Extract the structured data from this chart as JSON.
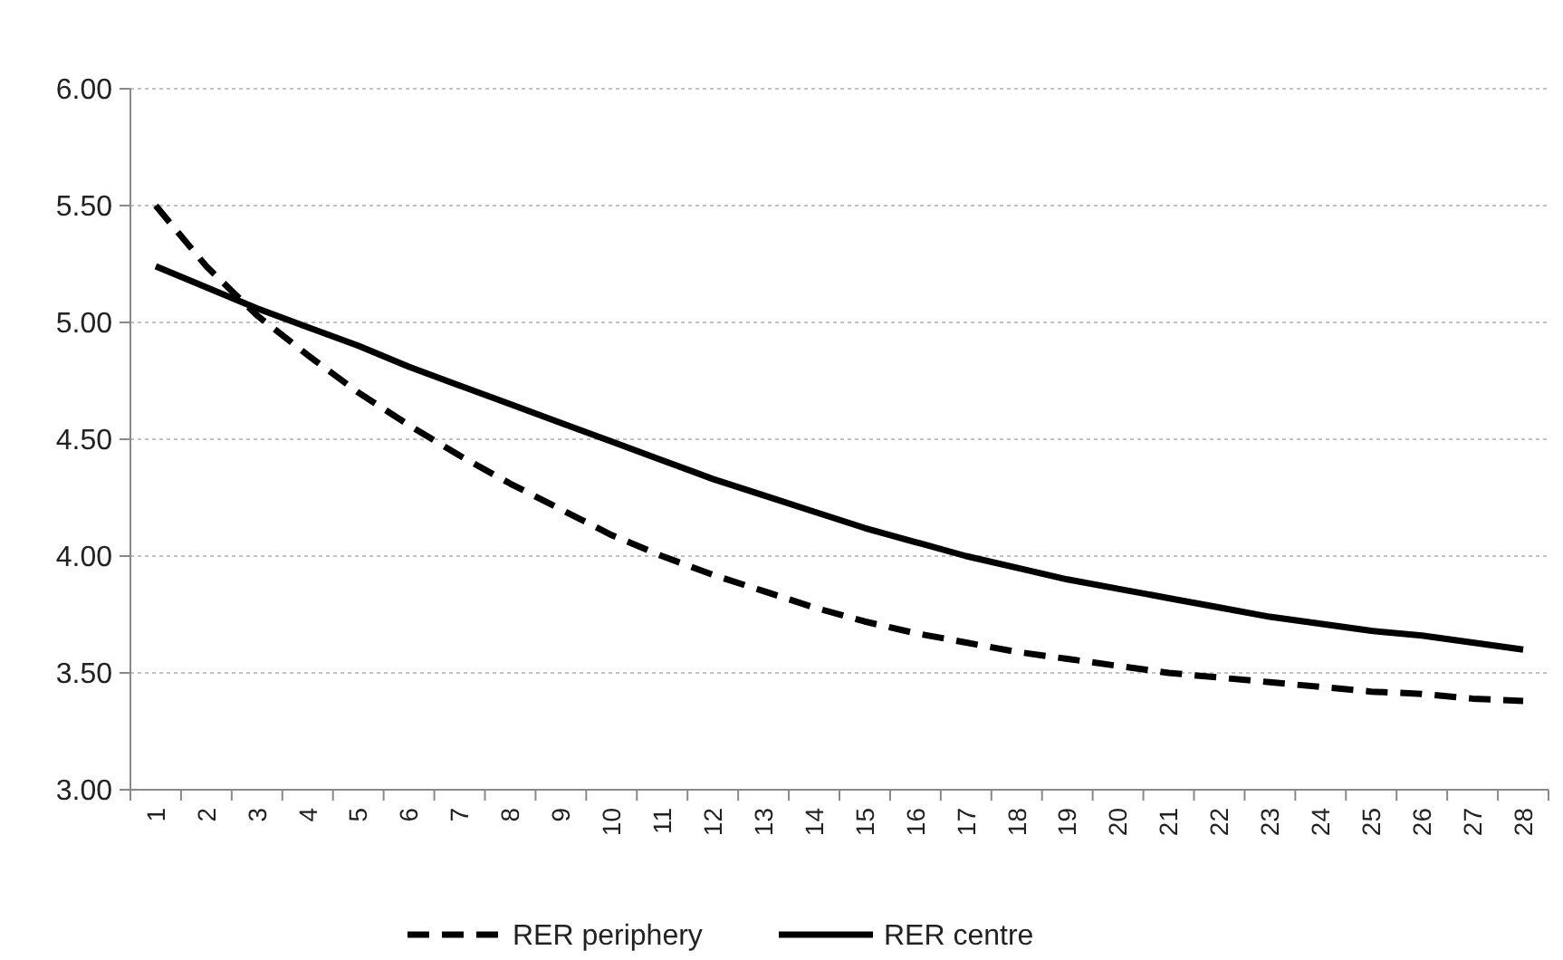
{
  "chart_data": {
    "type": "line",
    "categories": [
      "1",
      "2",
      "3",
      "4",
      "5",
      "6",
      "7",
      "8",
      "9",
      "10",
      "11",
      "12",
      "13",
      "14",
      "15",
      "16",
      "17",
      "18",
      "19",
      "20",
      "21",
      "22",
      "23",
      "24",
      "25",
      "26",
      "27",
      "28"
    ],
    "series": [
      {
        "name": "RER periphery",
        "color": "#000000",
        "line_style": "dashed",
        "values": [
          5.5,
          5.24,
          5.03,
          4.86,
          4.7,
          4.56,
          4.43,
          4.31,
          4.2,
          4.09,
          4.0,
          3.92,
          3.85,
          3.78,
          3.72,
          3.67,
          3.63,
          3.59,
          3.56,
          3.53,
          3.5,
          3.48,
          3.46,
          3.44,
          3.42,
          3.41,
          3.39,
          3.38
        ]
      },
      {
        "name": "RER centre",
        "color": "#000000",
        "line_style": "solid",
        "values": [
          5.24,
          5.15,
          5.06,
          4.98,
          4.9,
          4.81,
          4.73,
          4.65,
          4.57,
          4.49,
          4.41,
          4.33,
          4.26,
          4.19,
          4.12,
          4.06,
          4.0,
          3.95,
          3.9,
          3.86,
          3.82,
          3.78,
          3.74,
          3.71,
          3.68,
          3.66,
          3.63,
          3.6
        ]
      }
    ],
    "ylim": [
      3,
      6
    ],
    "yticks": [
      {
        "value": 3,
        "label": "3.00"
      },
      {
        "value": 3.5,
        "label": "3.50"
      },
      {
        "value": 4,
        "label": "4.00"
      },
      {
        "value": 4.5,
        "label": "4.50"
      },
      {
        "value": 5,
        "label": "5.00"
      },
      {
        "value": 5.5,
        "label": "5.50"
      },
      {
        "value": 6,
        "label": "6.00"
      }
    ],
    "grid": "y",
    "legend": "bottom",
    "marker": "none"
  }
}
